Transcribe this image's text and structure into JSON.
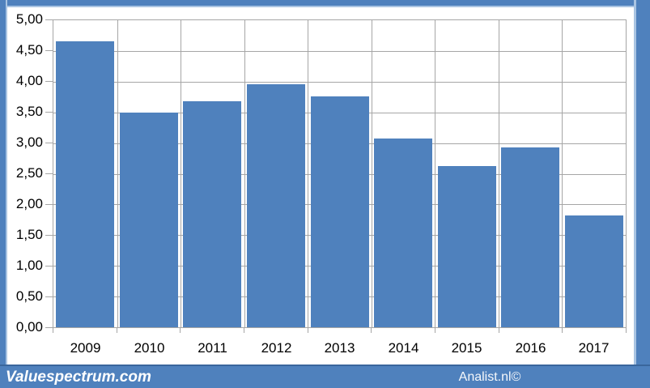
{
  "chart_data": {
    "type": "bar",
    "title": "",
    "xlabel": "",
    "ylabel": "",
    "categories": [
      "2009",
      "2010",
      "2011",
      "2012",
      "2013",
      "2014",
      "2015",
      "2016",
      "2017"
    ],
    "values": [
      4.66,
      3.5,
      3.68,
      3.96,
      3.76,
      3.08,
      2.62,
      2.93,
      1.82
    ],
    "ylim": [
      0,
      5
    ],
    "ytick_step": 0.5,
    "ytick_labels_top_to_bottom": [
      "5,00",
      "4,50",
      "4,00",
      "3,50",
      "3,00",
      "2,50",
      "2,00",
      "1,50",
      "1,00",
      "0,50",
      "0,00"
    ],
    "decimal_separator": ",",
    "grid": "horizontal-and-vertical",
    "legend": "none",
    "bar_color": "#4f81bd"
  },
  "footer": {
    "left_brand": "Valuespectrum.com",
    "right_brand": "Analist.nl©"
  },
  "theme": {
    "accent_blue": "#4f81bd",
    "frame_highlight": "#a9c4e2",
    "frame_shadow_line": "#3a669c",
    "gridline_gray": "#a6a6a6",
    "axis_text": "#000000",
    "footer_text": "#ffffff",
    "background": "#ffffff"
  }
}
